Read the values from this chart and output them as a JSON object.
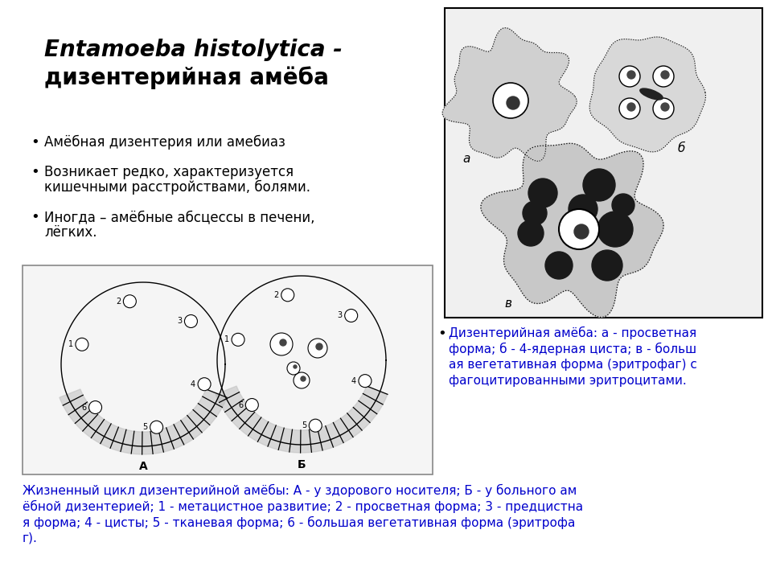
{
  "title_line1": "Entamoeba histolytica -",
  "title_line2": "дизентерийная амёба",
  "bullet1": "Амёбная дизентерия или амебиаз",
  "bullet2a": "Возникает редко, характеризуется",
  "bullet2b": "кишечными расстройствами, болями.",
  "bullet3a": "Иногда – амёбные абсцессы в печени,",
  "bullet3b": "лёгких.",
  "caption_right_lines": [
    "Дизентерийная амёба: а - просветная",
    "форма; б - 4-ядерная циста; в - больш",
    "ая вегетативная форма (эритрофаг) с",
    "фагоцитированными эритроцитами."
  ],
  "caption_bottom_lines": [
    "Жизненный цикл дизентерийной амёбы: А - у здорового носителя; Б - у больного ам",
    "ёбной дизентерией; 1 - метацистное развитие; 2 - просветная форма; 3 - предцистна",
    "я форма; 4 - цисты; 5 - тканевая форма; 6 - большая вегетативная форма (эритрофа",
    "г)."
  ],
  "bg_color": "#ffffff",
  "text_color": "#000000",
  "title_color": "#000000",
  "link_color": "#0000cc",
  "box_border_color": "#000000",
  "label_a": "а",
  "label_b": "б",
  "label_v": "в",
  "label_A": "А",
  "label_B": "Б"
}
